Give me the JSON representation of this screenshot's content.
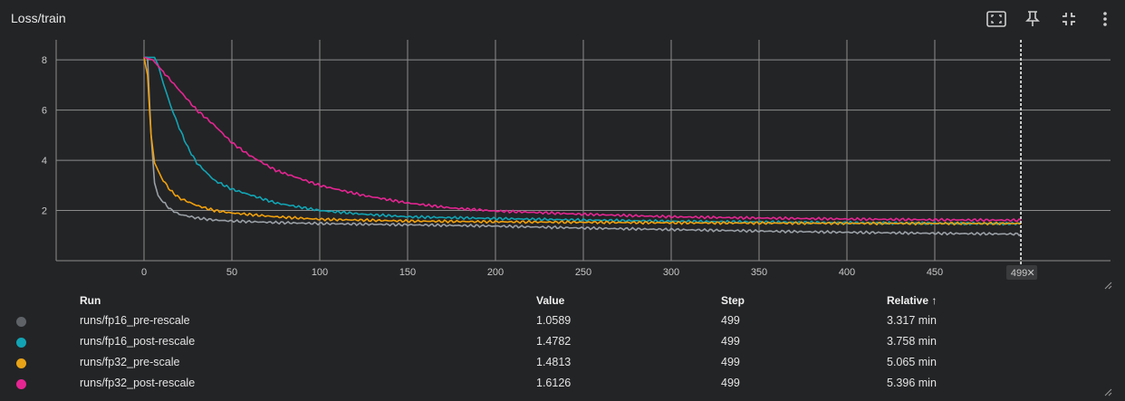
{
  "card": {
    "title": "Loss/train",
    "icons": [
      "fit-domain-icon",
      "pin-icon",
      "collapse-icon",
      "more-vert-icon"
    ]
  },
  "colors": {
    "background": "#232426",
    "grid": "#8c8c8c",
    "axis_text": "#c8c8c8",
    "cursor": "#ffffff"
  },
  "chart_data": {
    "type": "line",
    "title": "Loss/train",
    "xlabel": "",
    "ylabel": "",
    "xlim": [
      -50,
      550
    ],
    "ylim": [
      0,
      8.8
    ],
    "x_ticks": [
      0,
      50,
      100,
      150,
      200,
      250,
      300,
      350,
      400,
      450
    ],
    "y_ticks": [
      2,
      4,
      6,
      8
    ],
    "grid": true,
    "cursor_step": 499,
    "cursor_label": "499",
    "series": [
      {
        "name": "runs/fp16_pre-rescale",
        "color": "#9aa0a6",
        "x": [
          0,
          2,
          4,
          6,
          8,
          10,
          15,
          20,
          30,
          40,
          50,
          75,
          100,
          150,
          200,
          250,
          300,
          350,
          400,
          450,
          499
        ],
        "y": [
          8.1,
          8.1,
          5.0,
          3.1,
          2.6,
          2.4,
          2.05,
          1.85,
          1.7,
          1.62,
          1.58,
          1.52,
          1.48,
          1.43,
          1.38,
          1.3,
          1.24,
          1.18,
          1.13,
          1.09,
          1.0589
        ]
      },
      {
        "name": "runs/fp16_post-rescale",
        "color": "#12a4b4",
        "x": [
          0,
          2,
          4,
          6,
          8,
          10,
          15,
          20,
          25,
          30,
          40,
          50,
          75,
          100,
          125,
          150,
          200,
          250,
          300,
          350,
          400,
          450,
          499
        ],
        "y": [
          8.1,
          8.1,
          8.1,
          8.1,
          7.8,
          7.3,
          6.2,
          5.3,
          4.5,
          3.9,
          3.2,
          2.85,
          2.3,
          2.0,
          1.85,
          1.75,
          1.68,
          1.62,
          1.57,
          1.54,
          1.51,
          1.49,
          1.4782
        ]
      },
      {
        "name": "runs/fp32_pre-scale",
        "color": "#f1a00c",
        "x": [
          0,
          2,
          4,
          6,
          8,
          10,
          15,
          20,
          30,
          40,
          50,
          75,
          100,
          150,
          200,
          250,
          300,
          350,
          400,
          450,
          499
        ],
        "y": [
          8.1,
          7.4,
          5.0,
          3.9,
          3.6,
          3.3,
          2.8,
          2.5,
          2.2,
          2.0,
          1.9,
          1.75,
          1.65,
          1.58,
          1.55,
          1.53,
          1.51,
          1.5,
          1.49,
          1.485,
          1.4813
        ]
      },
      {
        "name": "runs/fp32_post-rescale",
        "color": "#e52592",
        "x": [
          0,
          5,
          10,
          20,
          30,
          40,
          50,
          60,
          75,
          100,
          125,
          150,
          175,
          200,
          250,
          300,
          350,
          400,
          450,
          499
        ],
        "y": [
          8.1,
          8.0,
          7.6,
          6.8,
          6.0,
          5.4,
          4.7,
          4.2,
          3.6,
          3.0,
          2.6,
          2.3,
          2.1,
          1.98,
          1.85,
          1.75,
          1.7,
          1.66,
          1.63,
          1.6126
        ]
      }
    ]
  },
  "table": {
    "headers": {
      "run": "Run",
      "value": "Value",
      "step": "Step",
      "relative": "Relative ↑"
    },
    "rows": [
      {
        "color": "#5f6368",
        "run": "runs/fp16_pre-rescale",
        "value": "1.0589",
        "step": "499",
        "relative": "3.317 min"
      },
      {
        "color": "#12a4b4",
        "run": "runs/fp16_post-rescale",
        "value": "1.4782",
        "step": "499",
        "relative": "3.758 min"
      },
      {
        "color": "#e8a317",
        "run": "runs/fp32_pre-scale",
        "value": "1.4813",
        "step": "499",
        "relative": "5.065 min"
      },
      {
        "color": "#e52592",
        "run": "runs/fp32_post-rescale",
        "value": "1.6126",
        "step": "499",
        "relative": "5.396 min"
      }
    ]
  }
}
